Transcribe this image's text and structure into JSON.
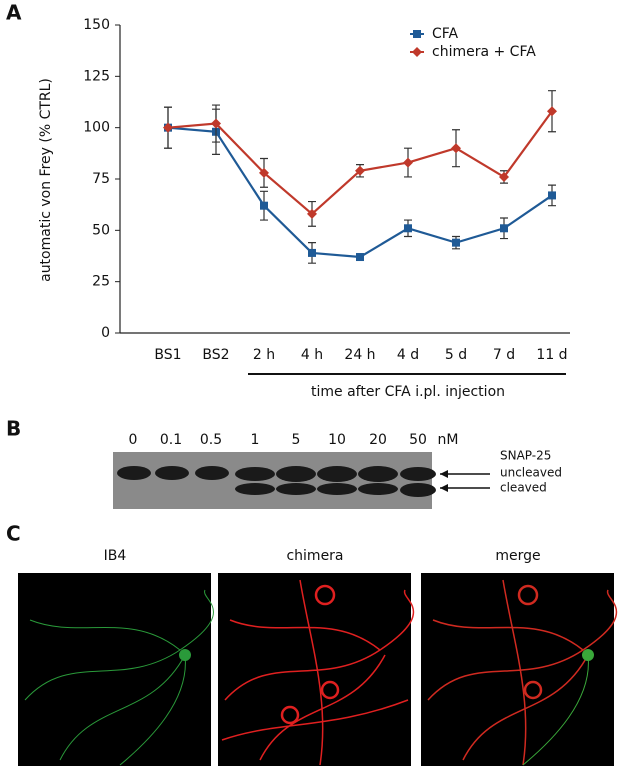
{
  "chart_data": {
    "type": "line",
    "panel_label": "A",
    "ylabel": "automatic von Frey (% CTRL)",
    "xlabel": "time after CFA i.pl. injection",
    "categories": [
      "BS1",
      "BS2",
      "2 h",
      "4 h",
      "24 h",
      "4 d",
      "5 d",
      "7 d",
      "11 d"
    ],
    "series": [
      {
        "name": "CFA",
        "color": "#1f5a96",
        "marker": "square",
        "values": [
          100,
          98,
          62,
          39,
          37,
          51,
          44,
          51,
          67
        ],
        "errors": [
          10,
          11,
          7,
          5,
          1,
          4,
          3,
          5,
          5
        ]
      },
      {
        "name": "chimera + CFA",
        "color": "#c0392b",
        "marker": "diamond",
        "values": [
          100,
          102,
          78,
          58,
          79,
          83,
          90,
          76,
          108
        ],
        "errors": [
          10,
          9,
          7,
          6,
          3,
          7,
          9,
          3,
          10
        ]
      }
    ],
    "ylim": [
      0,
      150
    ],
    "yticks": [
      0,
      25,
      50,
      75,
      100,
      125,
      150
    ],
    "grid": false,
    "legend": "upper right"
  },
  "blot": {
    "panel_label": "B",
    "lanes": [
      "0",
      "0.1",
      "0.5",
      "1",
      "5",
      "10",
      "20",
      "50"
    ],
    "unit": "nM",
    "annotations": [
      "SNAP-25",
      "uncleaved",
      "cleaved"
    ]
  },
  "images": {
    "panel_label": "C",
    "titles": [
      "IB4",
      "chimera",
      "merge"
    ]
  }
}
